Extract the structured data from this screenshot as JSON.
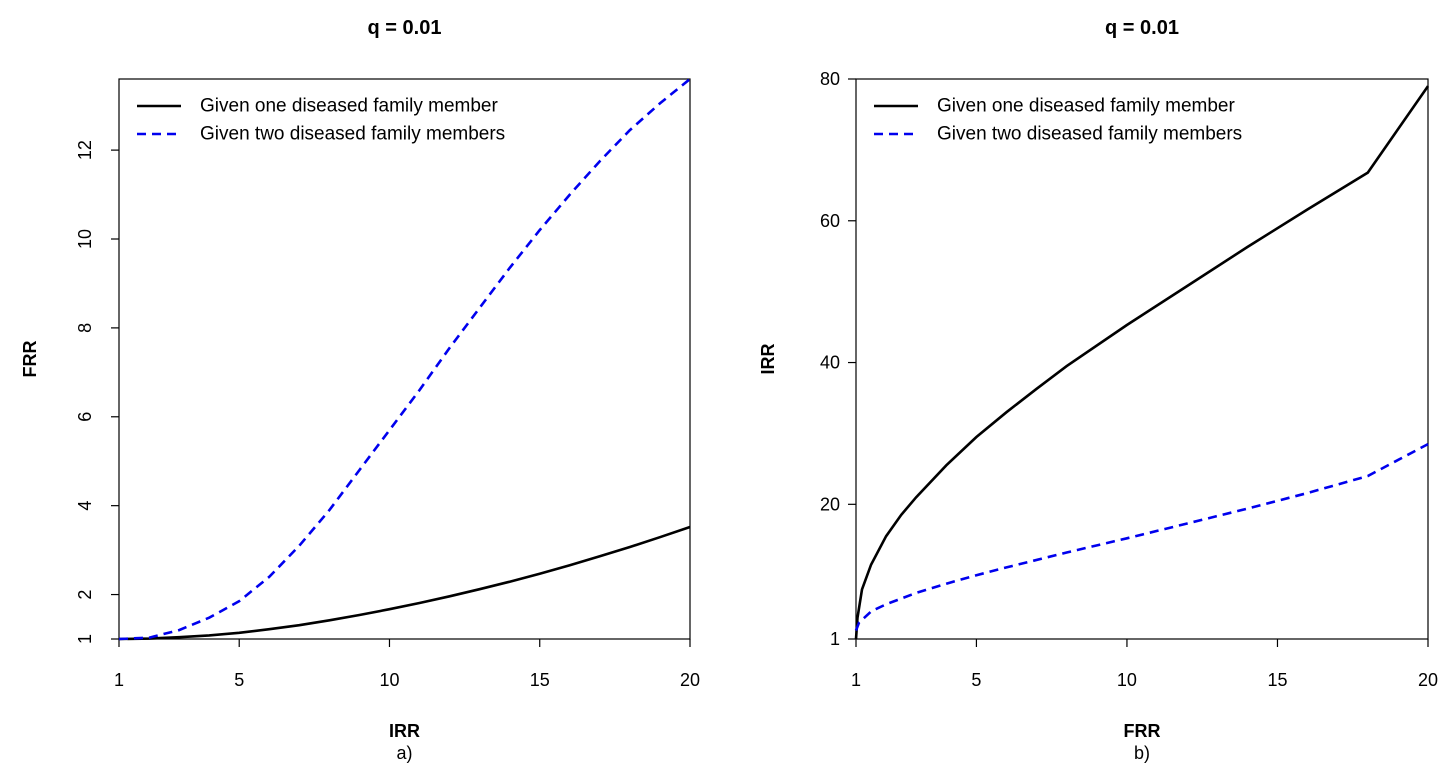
{
  "chart_data": [
    {
      "type": "line",
      "title": "q = 0.01",
      "xlabel": "IRR",
      "ylabel": "FRR",
      "caption": "a)",
      "xlim": [
        1,
        20
      ],
      "ylim": [
        1,
        13.6
      ],
      "xticks": [
        1,
        5,
        10,
        15,
        20
      ],
      "yticks": [
        1,
        2,
        4,
        6,
        8,
        10,
        12
      ],
      "y_tick_labels_rotated": true,
      "grid": false,
      "legend_position": "top-left",
      "series": [
        {
          "name": "Given one diseased family member",
          "color": "#000000",
          "dash": "solid",
          "x": [
            1,
            2,
            3,
            4,
            5,
            6,
            7,
            8,
            9,
            10,
            11,
            12,
            13,
            14,
            15,
            16,
            17,
            18,
            19,
            20
          ],
          "y": [
            1.0,
            1.01,
            1.04,
            1.08,
            1.14,
            1.22,
            1.31,
            1.42,
            1.54,
            1.67,
            1.81,
            1.96,
            2.12,
            2.29,
            2.47,
            2.66,
            2.86,
            3.07,
            3.29,
            3.52
          ]
        },
        {
          "name": "Given two diseased family members",
          "color": "#0000ee",
          "dash": "dashed",
          "x": [
            1,
            2,
            3,
            4,
            5,
            6,
            7,
            8,
            9,
            10,
            11,
            12,
            13,
            14,
            15,
            16,
            17,
            18,
            19,
            20
          ],
          "y": [
            1.0,
            1.03,
            1.2,
            1.48,
            1.85,
            2.4,
            3.1,
            3.9,
            4.8,
            5.7,
            6.6,
            7.55,
            8.45,
            9.35,
            10.2,
            11.0,
            11.75,
            12.45,
            13.05,
            13.6
          ]
        }
      ]
    },
    {
      "type": "line",
      "title": "q = 0.01",
      "xlabel": "FRR",
      "ylabel": "IRR",
      "caption": "b)",
      "xlim": [
        1,
        20
      ],
      "ylim": [
        1,
        80
      ],
      "xticks": [
        1,
        5,
        10,
        15,
        20
      ],
      "yticks": [
        1,
        20,
        40,
        60,
        80
      ],
      "grid": false,
      "legend_position": "top-left",
      "series": [
        {
          "name": "Given one diseased family member",
          "color": "#000000",
          "dash": "solid",
          "x": [
            1,
            1.05,
            1.2,
            1.5,
            2,
            2.5,
            3,
            4,
            5,
            6,
            7,
            8,
            10,
            12,
            14,
            16,
            18,
            20
          ],
          "y": [
            1,
            4,
            8,
            11.5,
            15.5,
            18.5,
            21,
            25.5,
            29.5,
            33,
            36.3,
            39.5,
            45.3,
            50.8,
            56.3,
            61.6,
            66.8,
            79
          ]
        },
        {
          "name": "Given two diseased family members",
          "color": "#0000ee",
          "dash": "dashed",
          "x": [
            1,
            1.1,
            1.5,
            2,
            3,
            4,
            5,
            6,
            8,
            10,
            12,
            14,
            16,
            18,
            20
          ],
          "y": [
            2.2,
            3.3,
            4.9,
            5.9,
            7.5,
            8.8,
            10,
            11.1,
            13.2,
            15.2,
            17.3,
            19.4,
            21.6,
            24,
            28.5
          ]
        }
      ]
    }
  ]
}
